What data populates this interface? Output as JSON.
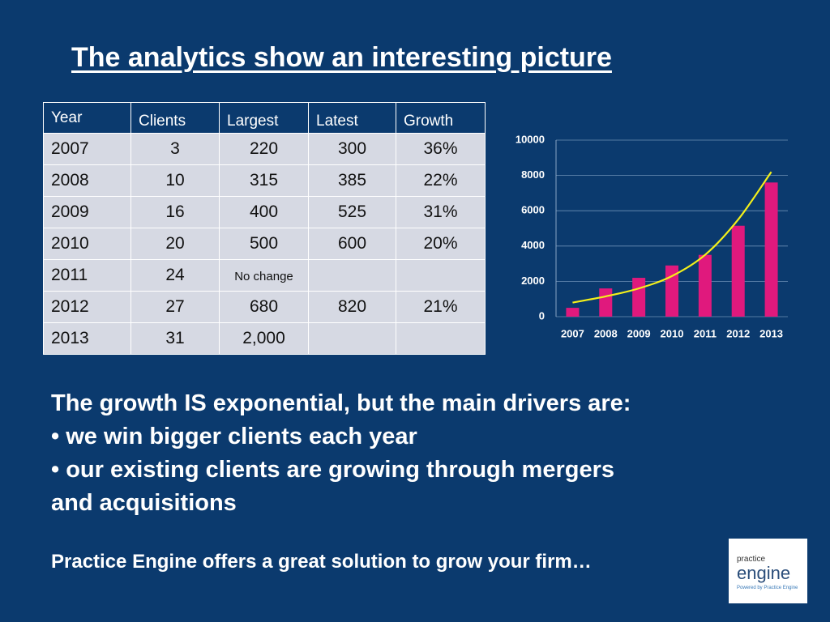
{
  "title": "The analytics show an interesting picture",
  "table": {
    "header": [
      "Year",
      "Clients",
      "Largest",
      "Latest",
      "Growth"
    ],
    "rows": [
      [
        "2007",
        "3",
        "220",
        "300",
        "36%"
      ],
      [
        "2008",
        "10",
        "315",
        "385",
        "22%"
      ],
      [
        "2009",
        "16",
        "400",
        "525",
        "31%"
      ],
      [
        "2010",
        "20",
        "500",
        "600",
        "20%"
      ],
      [
        "2011",
        "24",
        "No change",
        null,
        null
      ],
      [
        "2012",
        "27",
        "680",
        "820",
        "21%"
      ],
      [
        "2013",
        "31",
        "2,000",
        null,
        null
      ]
    ]
  },
  "chart_data": {
    "type": "bar",
    "categories": [
      "2007",
      "2008",
      "2009",
      "2010",
      "2011",
      "2012",
      "2013"
    ],
    "values": [
      500,
      1600,
      2200,
      2900,
      3500,
      5150,
      7600
    ],
    "color": "#e0197d",
    "trend": {
      "values": [
        800,
        1150,
        1600,
        2300,
        3500,
        5500,
        8200
      ],
      "color": "#f4f01a"
    },
    "ylim": [
      0,
      10000
    ],
    "yticks": [
      0,
      2000,
      4000,
      6000,
      8000,
      10000
    ],
    "grid": true
  },
  "body": {
    "lead": "The growth IS exponential, but the main drivers are:",
    "bullets": [
      "• we win bigger clients each year",
      "• our existing clients are growing through mergers",
      "and acquisitions"
    ]
  },
  "footer": "Practice Engine offers a great solution to grow your firm…",
  "logo": {
    "top": "practice",
    "main": "engine",
    "tagline": "Powered by Practice Engine"
  }
}
